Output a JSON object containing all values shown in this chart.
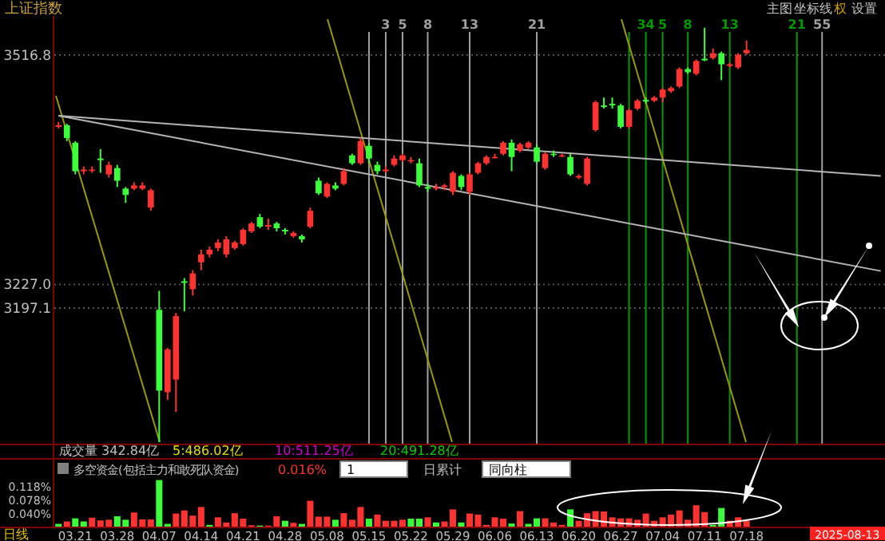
{
  "chart_data": [
    {
      "type": "candlestick",
      "title": "上证指数",
      "categories": [
        null,
        null,
        "03.21",
        null,
        null,
        null,
        null,
        "03.28",
        null,
        null,
        null,
        null,
        "04.07",
        null,
        null,
        null,
        null,
        "04.14",
        null,
        null,
        null,
        null,
        "04.21",
        null,
        null,
        null,
        null,
        "04.28",
        null,
        null,
        null,
        null,
        "05.08",
        null,
        null,
        null,
        null,
        "05.15",
        null,
        null,
        null,
        null,
        "05.22",
        null,
        null,
        null,
        null,
        "05.29",
        null,
        null,
        null,
        null,
        "06.06",
        null,
        null,
        null,
        null,
        "06.13",
        null,
        null,
        null,
        null,
        "06.20",
        null,
        null,
        null,
        null,
        "06.27",
        null,
        null,
        null,
        null,
        "07.04",
        null,
        null,
        null,
        null,
        "07.11",
        null,
        null,
        null,
        null,
        "07.18",
        null,
        null,
        null,
        null,
        null,
        null,
        null,
        null,
        null,
        null,
        null,
        null,
        null,
        null,
        null,
        null
      ],
      "ohlc": [
        [
          3426,
          3432,
          3424,
          3428
        ],
        [
          3428,
          3430,
          3408,
          3412
        ],
        [
          3406,
          3408,
          3366,
          3370
        ],
        [
          3370,
          3376,
          3366,
          3372
        ],
        [
          3372,
          3376,
          3368,
          3372
        ],
        [
          3386,
          3398,
          3368,
          3384
        ],
        [
          3366,
          3382,
          3362,
          3378
        ],
        [
          3374,
          3378,
          3350,
          3358
        ],
        [
          3348,
          3350,
          3330,
          3340
        ],
        [
          3348,
          3356,
          3346,
          3352
        ],
        [
          3348,
          3356,
          3346,
          3352
        ],
        [
          3324,
          3348,
          3320,
          3346
        ],
        [
          3195,
          3219,
          3028,
          3093
        ],
        [
          3091,
          3147,
          3081,
          3145
        ],
        [
          3107,
          3191,
          3066,
          3187
        ],
        [
          3231,
          3235,
          3193,
          3229
        ],
        [
          3221,
          3245,
          3213,
          3241
        ],
        [
          3255,
          3271,
          3245,
          3265
        ],
        [
          3265,
          3275,
          3261,
          3271
        ],
        [
          3273,
          3284,
          3269,
          3280
        ],
        [
          3265,
          3288,
          3261,
          3284
        ],
        [
          3273,
          3282,
          3271,
          3280
        ],
        [
          3278,
          3298,
          3276,
          3296
        ],
        [
          3294,
          3306,
          3292,
          3304
        ],
        [
          3312,
          3316,
          3298,
          3300
        ],
        [
          3300,
          3310,
          3296,
          3302
        ],
        [
          3304,
          3306,
          3294,
          3298
        ],
        [
          3296,
          3298,
          3290,
          3294
        ],
        [
          3288,
          3294,
          3286,
          3292
        ],
        [
          3288,
          3290,
          3280,
          3284
        ],
        [
          3300,
          3324,
          3298,
          3320
        ],
        [
          3358,
          3362,
          3340,
          3342
        ],
        [
          3338,
          3356,
          3336,
          3354
        ],
        [
          3352,
          3356,
          3346,
          3348
        ],
        [
          3354,
          3374,
          3352,
          3370
        ],
        [
          3390,
          3392,
          3378,
          3380
        ],
        [
          3380,
          3412,
          3378,
          3408
        ],
        [
          3402,
          3406,
          3380,
          3386
        ],
        [
          3378,
          3382,
          3366,
          3370
        ],
        [
          3370,
          3376,
          3368,
          3372
        ],
        [
          3378,
          3390,
          3376,
          3386
        ],
        [
          3384,
          3392,
          3382,
          3390
        ],
        [
          3384,
          3388,
          3380,
          3384
        ],
        [
          3380,
          3386,
          3350,
          3352
        ],
        [
          3350,
          3354,
          3344,
          3348
        ],
        [
          3348,
          3354,
          3346,
          3350
        ],
        [
          3350,
          3354,
          3346,
          3352
        ],
        [
          3344,
          3370,
          3340,
          3368
        ],
        [
          3364,
          3366,
          3346,
          3350
        ],
        [
          3344,
          3368,
          3340,
          3366
        ],
        [
          3368,
          3382,
          3366,
          3380
        ],
        [
          3380,
          3390,
          3378,
          3388
        ],
        [
          3388,
          3392,
          3386,
          3388
        ],
        [
          3392,
          3408,
          3390,
          3406
        ],
        [
          3406,
          3410,
          3370,
          3388
        ],
        [
          3396,
          3406,
          3394,
          3404
        ],
        [
          3400,
          3408,
          3398,
          3406
        ],
        [
          3400,
          3404,
          3380,
          3382
        ],
        [
          3374,
          3394,
          3372,
          3392
        ],
        [
          3392,
          3396,
          3388,
          3391
        ],
        [
          3390,
          3392,
          3388,
          3390
        ],
        [
          3388,
          3392,
          3364,
          3366
        ],
        [
          3362,
          3366,
          3360,
          3364
        ],
        [
          3354,
          3388,
          3352,
          3386
        ],
        [
          3422,
          3459,
          3420,
          3457
        ],
        [
          3453,
          3463,
          3449,
          3451
        ],
        [
          3455,
          3463,
          3449,
          3453
        ],
        [
          3453,
          3455,
          3424,
          3426
        ],
        [
          3426,
          3449,
          3424,
          3447
        ],
        [
          3449,
          3461,
          3447,
          3459
        ],
        [
          3460,
          3463,
          3455,
          3458
        ],
        [
          3459,
          3465,
          3457,
          3463
        ],
        [
          3463,
          3475,
          3457,
          3473
        ],
        [
          3471,
          3477,
          3469,
          3475
        ],
        [
          3477,
          3501,
          3475,
          3499
        ],
        [
          3499,
          3501,
          3493,
          3495
        ],
        [
          3493,
          3511,
          3491,
          3509
        ],
        [
          3512,
          3551,
          3509,
          3510
        ],
        [
          3513,
          3525,
          3511,
          3519
        ],
        [
          3519,
          3521,
          3485,
          3505
        ],
        [
          3503,
          3507,
          3501,
          3505
        ],
        [
          3501,
          3519,
          3499,
          3517
        ],
        [
          3519,
          3535,
          3517,
          3523
        ],
        null,
        null,
        null,
        null,
        null,
        null,
        null,
        null,
        null,
        null,
        null,
        null,
        null,
        null,
        null,
        null
      ],
      "colors": [
        "#ff3232",
        "#3cff3c",
        "#3cff3c",
        "#ff3232",
        "#ff3232",
        "#3cff3c",
        "#ff3232",
        "#3cff3c",
        "#3cff3c",
        "#ff3232",
        "#ff3232",
        "#ff3232",
        "#3cff3c",
        "#ff3232",
        "#ff3232",
        "#3cff3c",
        "#ff3232",
        "#ff3232",
        "#ff3232",
        "#ff3232",
        "#ff3232",
        "#ff3232",
        "#ff3232",
        "#ff3232",
        "#3cff3c",
        "#ff3232",
        "#3cff3c",
        "#3cff3c",
        "#ff3232",
        "#3cff3c",
        "#ff3232",
        "#3cff3c",
        "#ff3232",
        "#3cff3c",
        "#ff3232",
        "#3cff3c",
        "#ff3232",
        "#3cff3c",
        "#3cff3c",
        "#ff3232",
        "#ff3232",
        "#ff3232",
        "#ff3232",
        "#3cff3c",
        "#3cff3c",
        "#ff3232",
        "#ff3232",
        "#ff3232",
        "#3cff3c",
        "#ff3232",
        "#ff3232",
        "#ff3232",
        "#ff3232",
        "#ff3232",
        "#3cff3c",
        "#ff3232",
        "#ff3232",
        "#3cff3c",
        "#ff3232",
        "#3cff3c",
        "#ff3232",
        "#3cff3c",
        "#ff3232",
        "#ff3232",
        "#ff3232",
        "#3cff3c",
        "#3cff3c",
        "#3cff3c",
        "#ff3232",
        "#ff3232",
        "#3cff3c",
        "#ff3232",
        "#ff3232",
        "#ff3232",
        "#ff3232",
        "#3cff3c",
        "#ff3232",
        "#3cff3c",
        "#ff3232",
        "#3cff3c",
        "#ff3232",
        "#ff3232",
        "#ff3232",
        null,
        null,
        null,
        null,
        null,
        null,
        null,
        null,
        null,
        null,
        null,
        null,
        null,
        null,
        null,
        null
      ],
      "ylim": [
        3026,
        3566
      ],
      "yticks": [
        3516.8,
        {
          "value": 3227.0,
          "label": "3227.0"
        },
        3197.1
      ],
      "grid": "y",
      "tick_labels": "y",
      "series": [
        {
          "type": "line",
          "color": "#b4b4b4",
          "values": [
            3440,
            null,
            null,
            null,
            null,
            null,
            null,
            null,
            null,
            null,
            null,
            null,
            null,
            null,
            null,
            null,
            null,
            null,
            null,
            null,
            null,
            null,
            null,
            null,
            null,
            null,
            null,
            null,
            null,
            null,
            null,
            null,
            null,
            null,
            null,
            null,
            null,
            null,
            null,
            null,
            null,
            null,
            null,
            null,
            null,
            null,
            null,
            null,
            null,
            null,
            null,
            null,
            null,
            null,
            null,
            null,
            null,
            null,
            null,
            null,
            null,
            null,
            null,
            null,
            null,
            null,
            null,
            null,
            null,
            null,
            null,
            null,
            null,
            null,
            null,
            null,
            null,
            null,
            null,
            null,
            null,
            null,
            null,
            null,
            null,
            null,
            null,
            null,
            null,
            null,
            null,
            null,
            null,
            null,
            null,
            null,
            null,
            null,
            3364
          ]
        },
        {
          "type": "line",
          "color": "#b4b4b4",
          "values": [
            3440,
            null,
            null,
            null,
            null,
            null,
            null,
            null,
            null,
            null,
            null,
            null,
            null,
            null,
            null,
            null,
            null,
            null,
            null,
            null,
            null,
            null,
            null,
            null,
            null,
            null,
            null,
            null,
            null,
            null,
            null,
            null,
            null,
            null,
            null,
            null,
            null,
            null,
            null,
            null,
            null,
            null,
            null,
            null,
            null,
            null,
            null,
            null,
            null,
            null,
            null,
            null,
            null,
            null,
            null,
            null,
            null,
            null,
            null,
            null,
            null,
            null,
            null,
            null,
            null,
            null,
            null,
            null,
            null,
            null,
            null,
            null,
            null,
            null,
            null,
            null,
            null,
            null,
            null,
            null,
            null,
            null,
            null,
            null,
            null,
            null,
            null,
            null,
            null,
            null,
            null,
            null,
            null,
            null,
            null,
            null,
            null,
            null,
            3244
          ]
        }
      ],
      "annotations": [
        "主图",
        "坐标线",
        "权",
        "设置",
        "日线",
        "2025-08-13",
        "3",
        "5",
        "8",
        "13",
        "21",
        "34",
        "5",
        "8",
        "13",
        "21",
        "55"
      ]
    },
    {
      "type": "bar",
      "title": "多空资金(包括主力和敢死队资金)",
      "categories": [
        null,
        null,
        "03.21",
        null,
        null,
        null,
        null,
        "03.28",
        null,
        null,
        null,
        null,
        "04.07",
        null,
        null,
        null,
        null,
        "04.14",
        null,
        null,
        null,
        null,
        "04.21",
        null,
        null,
        null,
        null,
        "04.28",
        null,
        null,
        null,
        null,
        "05.08",
        null,
        null,
        null,
        null,
        "05.15",
        null,
        null,
        null,
        null,
        "05.22",
        null,
        null,
        null,
        null,
        "05.29",
        null,
        null,
        null,
        null,
        "06.06",
        null,
        null,
        null,
        null,
        "06.13",
        null,
        null,
        null,
        null,
        "06.20",
        null,
        null,
        null,
        null,
        "06.27",
        null,
        null,
        null,
        null,
        "07.04",
        null,
        null,
        null,
        null,
        "07.11",
        null,
        null,
        null,
        null,
        "07.18",
        null,
        null,
        null,
        null,
        null,
        null,
        null,
        null,
        null,
        null,
        null,
        null,
        null,
        null,
        null,
        null
      ],
      "values": [
        0.008,
        0.015,
        0.024,
        0.015,
        0.026,
        0.018,
        0.02,
        0.03,
        0.02,
        0.041,
        0.021,
        0.021,
        0.135,
        0.008,
        0.038,
        0.047,
        0.032,
        0.057,
        0.005,
        0.027,
        0.012,
        0.039,
        0.023,
        0.004,
        0.003,
        0.003,
        0.03,
        0.017,
        0.011,
        0.008,
        0.075,
        0.029,
        0.029,
        0.02,
        0.039,
        0.02,
        0.057,
        0.023,
        0.035,
        0.017,
        0.017,
        0.02,
        0.023,
        0.023,
        0.027,
        0.012,
        0.015,
        0.05,
        0.012,
        0.038,
        0.035,
        0.005,
        0.027,
        0.023,
        0.009,
        0.045,
        0.008,
        0.024,
        0.024,
        0.012,
        0.005,
        0.05,
        0.017,
        0.039,
        0.045,
        0.044,
        0.027,
        0.024,
        0.024,
        0.02,
        0.038,
        0.017,
        0.027,
        0.035,
        0.047,
        0.02,
        0.062,
        0.042,
        0.005,
        0.054,
        0.017,
        0.027,
        0.017,
        null,
        null,
        null,
        null,
        null,
        null,
        null,
        null,
        null,
        null,
        null,
        null,
        null,
        null,
        null,
        null
      ],
      "colors": [
        "#3cff3c",
        "#ff3232",
        "#3cff3c",
        "#3cff3c",
        "#ff3232",
        "#ff3232",
        "#ff3232",
        "#3cff3c",
        "#3cff3c",
        "#ff3232",
        "#ff3232",
        "#ff3232",
        "#3cff3c",
        "#3cff3c",
        "#ff3232",
        "#ff3232",
        "#ff3232",
        "#ff3232",
        "#3cff3c",
        "#ff3232",
        "#ff3232",
        "#ff3232",
        "#ff3232",
        "#ff3232",
        "#3cff3c",
        "#ff3232",
        "#ff3232",
        "#3cff3c",
        "#ff3232",
        "#3cff3c",
        "#ff3232",
        "#ff3232",
        "#ff3232",
        "#3cff3c",
        "#ff3232",
        "#ff3232",
        "#ff3232",
        "#3cff3c",
        "#ff3232",
        "#ff3232",
        "#ff3232",
        "#ff3232",
        "#3cff3c",
        "#3cff3c",
        "#ff3232",
        "#3cff3c",
        "#ff3232",
        "#ff3232",
        "#3cff3c",
        "#ff3232",
        "#ff3232",
        "#ff3232",
        "#ff3232",
        "#ff3232",
        "#3cff3c",
        "#ff3232",
        "#3cff3c",
        "#3cff3c",
        "#ff3232",
        "#ff3232",
        "#ff3232",
        "#3cff3c",
        "#ff3232",
        "#ff3232",
        "#ff3232",
        "#ff3232",
        "#ff3232",
        "#ff3232",
        "#ff3232",
        "#ff3232",
        "#ff3232",
        "#ff3232",
        "#ff3232",
        "#ff3232",
        "#ff3232",
        "#ff3232",
        "#ff3232",
        "#ff3232",
        "#3cff3c",
        "#3cff3c",
        "#ff3232",
        "#ff3232",
        "#ff3232",
        null,
        null,
        null,
        null,
        null,
        null,
        null,
        null,
        null,
        null,
        null,
        null,
        null,
        null,
        null,
        null
      ],
      "ylim": [
        0,
        0.148
      ],
      "yticks": [
        {
          "value": 0.118,
          "label": "0.118%"
        },
        {
          "value": 0.078,
          "label": "0.078%"
        },
        {
          "value": 0.04,
          "label": "0.040%"
        }
      ],
      "annotations": [
        "成交量 342.84亿",
        "5:486.02亿",
        "10:511.25亿",
        "20:491.28亿",
        "0.016%",
        "1",
        "日累计",
        "同向柱"
      ]
    }
  ]
}
